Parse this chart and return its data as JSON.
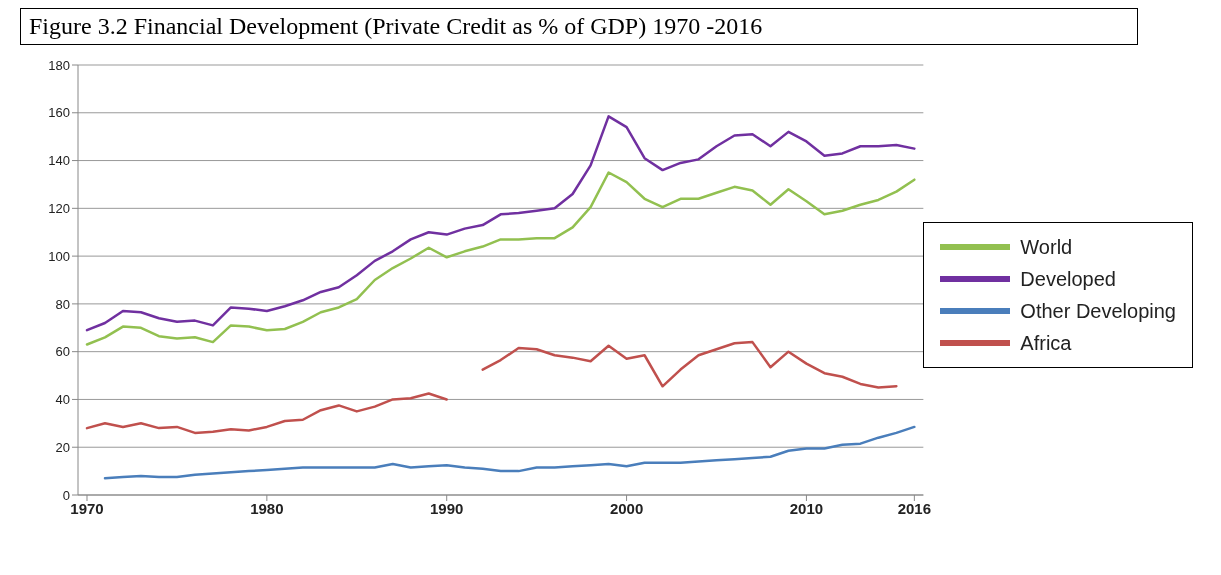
{
  "chart_data": {
    "type": "line",
    "title": "Figure 3.2 Financial Development (Private Credit as % of GDP) 1970 -2016",
    "x": [
      1970,
      1971,
      1972,
      1973,
      1974,
      1975,
      1976,
      1977,
      1978,
      1979,
      1980,
      1981,
      1982,
      1983,
      1984,
      1985,
      1986,
      1987,
      1988,
      1989,
      1990,
      1991,
      1992,
      1993,
      1994,
      1995,
      1996,
      1997,
      1998,
      1999,
      2000,
      2001,
      2002,
      2003,
      2004,
      2005,
      2006,
      2007,
      2008,
      2009,
      2010,
      2011,
      2012,
      2013,
      2014,
      2015,
      2016
    ],
    "series": [
      {
        "name": "World",
        "color": "#92c050",
        "values": [
          63,
          66,
          70.5,
          70,
          66.5,
          65.5,
          66,
          64,
          71,
          70.5,
          69,
          69.5,
          72.5,
          76.5,
          78.5,
          82,
          90,
          95,
          99,
          103.5,
          99.5,
          102,
          104,
          107,
          107,
          107.5,
          107.5,
          112,
          120.5,
          135,
          131,
          124,
          120.5,
          124,
          124,
          126.5,
          129,
          127.5,
          121.5,
          128,
          123,
          117.5,
          119,
          121.5,
          123.5,
          127,
          132
        ]
      },
      {
        "name": "Developed",
        "color": "#7030a0",
        "values": [
          69,
          72,
          77,
          76.5,
          74,
          72.5,
          73,
          71,
          78.5,
          78,
          77,
          79,
          81.5,
          85,
          87,
          92,
          98,
          102,
          107,
          110,
          109,
          111.5,
          113,
          117.5,
          118,
          119,
          120,
          126,
          138,
          158.5,
          154,
          141,
          136,
          139,
          140.5,
          146,
          150.5,
          151,
          146,
          152,
          148,
          142,
          143,
          146,
          146,
          146.5,
          145
        ]
      },
      {
        "name": "Other Developing",
        "color": "#4a7ebb",
        "values": [
          null,
          7,
          7.5,
          8,
          7.5,
          7.5,
          8.5,
          9,
          9.5,
          10,
          10.5,
          11,
          11.5,
          11.5,
          11.5,
          11.5,
          11.5,
          13,
          11.5,
          12,
          12.5,
          11.5,
          11,
          10,
          10,
          11.5,
          11.5,
          12,
          12.5,
          13,
          12,
          13.5,
          13.5,
          13.5,
          14,
          14.5,
          15,
          15.5,
          16,
          18.5,
          19.5,
          19.5,
          21,
          21.5,
          24,
          26,
          28.5
        ]
      },
      {
        "name": "Africa",
        "color": "#c0504d",
        "values": [
          28,
          30,
          28.5,
          30,
          28,
          28.5,
          26,
          26.5,
          27.5,
          27,
          28.5,
          31,
          31.5,
          35.5,
          37.5,
          35,
          37,
          40,
          40.5,
          42.5,
          40,
          null,
          52.5,
          56.5,
          61.5,
          61,
          58.5,
          57.5,
          56,
          62.5,
          57,
          58.5,
          45.5,
          52.5,
          58.5,
          61,
          63.5,
          64,
          53.5,
          60,
          55,
          51,
          49.5,
          46.5,
          45,
          45.5,
          null
        ]
      }
    ],
    "xlim": [
      1969.5,
      2016.5
    ],
    "xticks": [
      1970,
      1980,
      1990,
      2000,
      2010,
      2016
    ],
    "ylim": [
      0,
      180
    ],
    "yticks": [
      0,
      20,
      40,
      60,
      80,
      100,
      120,
      140,
      160,
      180
    ],
    "grid": "y",
    "legend": "right",
    "marker": "none",
    "line_style": "solid"
  }
}
